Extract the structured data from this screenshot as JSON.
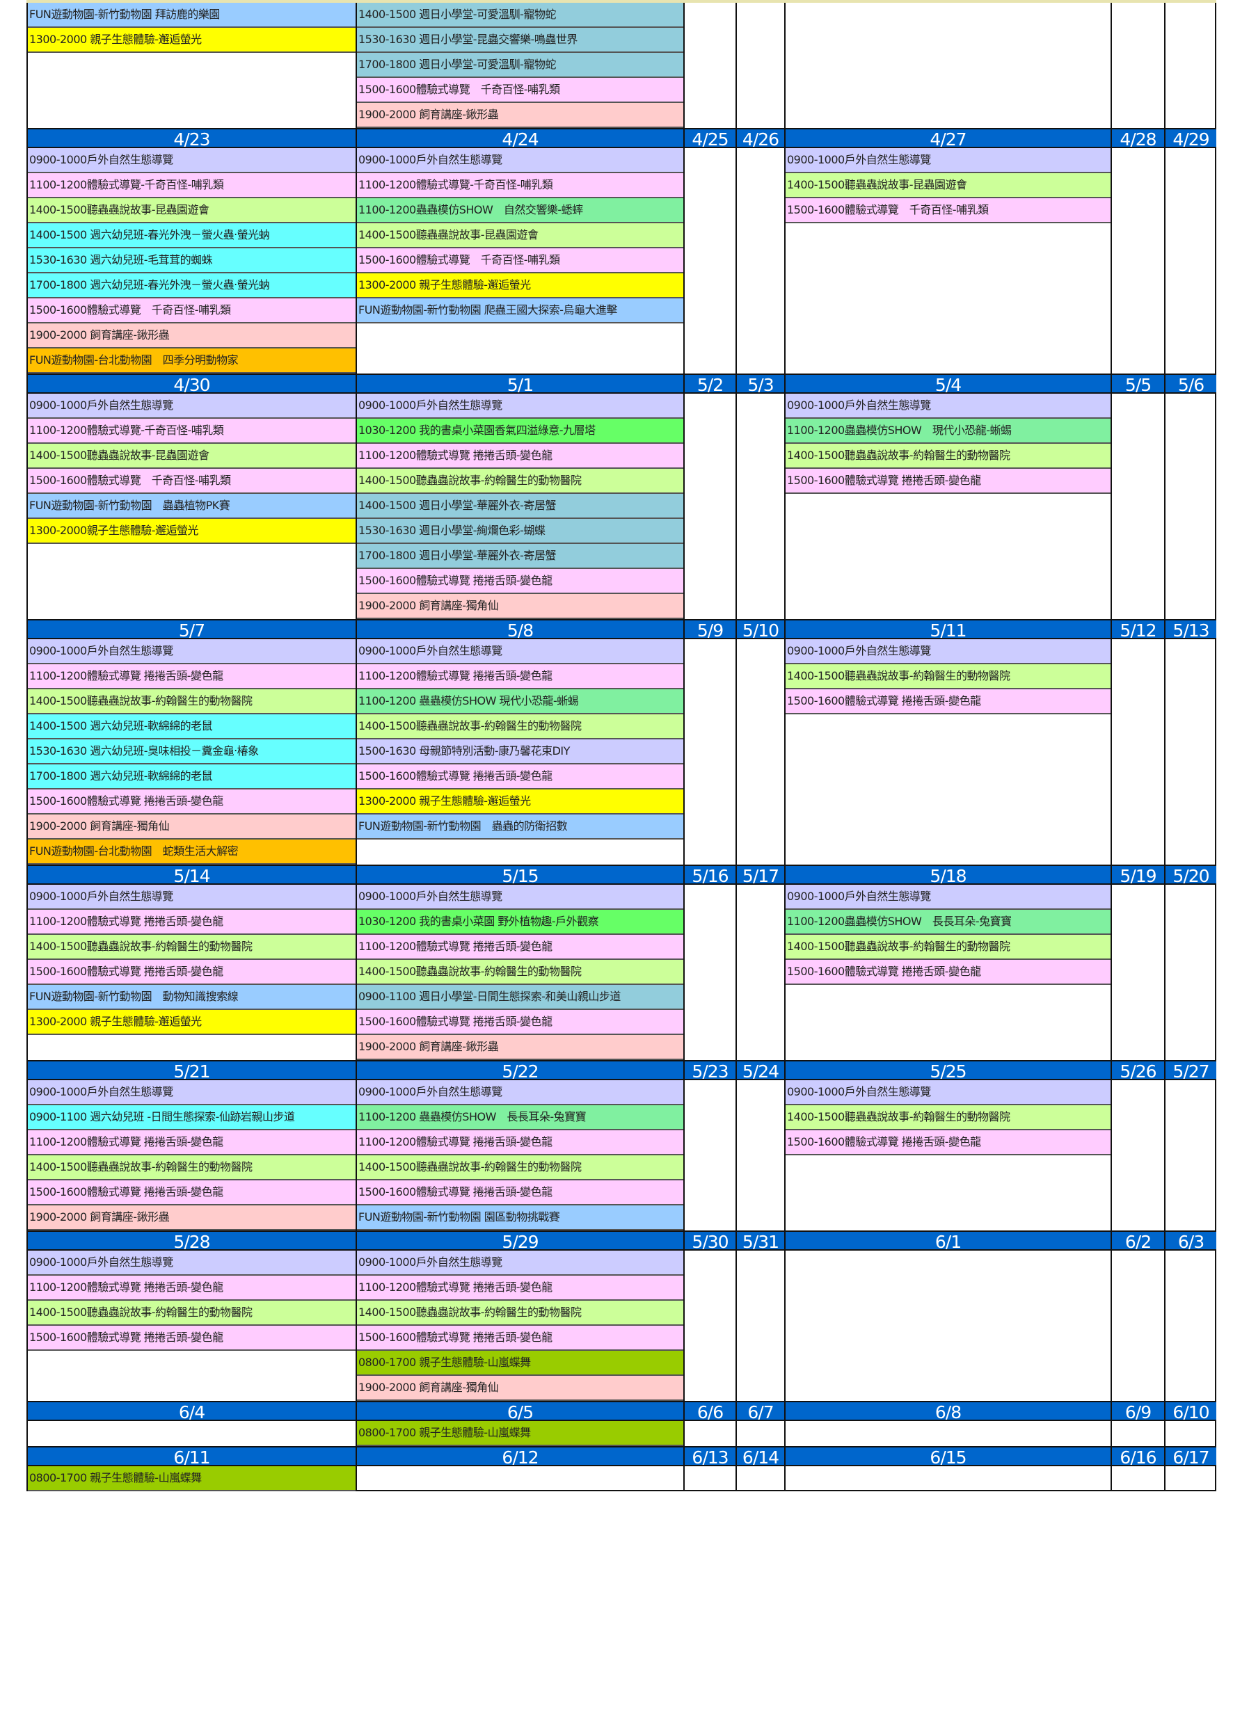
{
  "colors": {
    "header": "#0066cc",
    "tour": "#ccccff",
    "exp": "#ffccff",
    "story": "#ccff99",
    "kid": "#66ffff",
    "sun": "#92cddc",
    "fun": "#99ccff",
    "firefly": "#ffff00",
    "feed": "#ffcccc",
    "fun_tp": "#ffc000",
    "show": "#80f0a0",
    "garden": "#66ff66",
    "mom": "#ccccff",
    "butterfly": "#99cc00"
  },
  "weeks": [
    {
      "dates": [],
      "cols": [
        [
          {
            "t": "FUN遊動物園-新竹動物園  拜訪鹿的樂園",
            "c": "fun"
          },
          {
            "t": "1300-2000 親子生態體驗-邂逅螢光",
            "c": "firefly"
          }
        ],
        [
          {
            "t": "1400-1500 週日小學堂-可愛溫馴-寵物蛇",
            "c": "sun"
          },
          {
            "t": "1530-1630 週日小學堂-昆蟲交響樂-鳴蟲世界",
            "c": "sun"
          },
          {
            "t": "1700-1800 週日小學堂-可愛溫馴-寵物蛇",
            "c": "sun"
          },
          {
            "t": "1500-1600體驗式導覽　千奇百怪-哺乳類",
            "c": "exp"
          },
          {
            "t": "1900-2000 飼育講座-鍬形蟲",
            "c": "feed"
          }
        ],
        [],
        [],
        [],
        [],
        []
      ]
    },
    {
      "dates": [
        "4/23",
        "4/24",
        "4/25",
        "4/26",
        "4/27",
        "4/28",
        "4/29"
      ],
      "cols": [
        [
          {
            "t": "0900-1000戶外自然生態導覽",
            "c": "tour"
          },
          {
            "t": "1100-1200體驗式導覽-千奇百怪-哺乳類",
            "c": "exp"
          },
          {
            "t": "1400-1500聽蟲蟲說故事-昆蟲園遊會",
            "c": "story"
          },
          {
            "t": "1400-1500 週六幼兒班-春光外洩－螢火蟲‧螢光蚋",
            "c": "kid"
          },
          {
            "t": "1530-1630 週六幼兒班-毛茸茸的蜘蛛",
            "c": "kid"
          },
          {
            "t": "1700-1800 週六幼兒班-春光外洩－螢火蟲‧螢光蚋",
            "c": "kid"
          },
          {
            "t": "1500-1600體驗式導覽　千奇百怪-哺乳類",
            "c": "exp"
          },
          {
            "t": "1900-2000 飼育講座-鍬形蟲",
            "c": "feed"
          },
          {
            "t": "FUN遊動物園-台北動物園　四季分明動物家",
            "c": "fun_tp"
          }
        ],
        [
          {
            "t": "0900-1000戶外自然生態導覽",
            "c": "tour"
          },
          {
            "t": "1100-1200體驗式導覽-千奇百怪-哺乳類",
            "c": "exp"
          },
          {
            "t": "1100-1200蟲蟲模仿SHOW　自然交響樂-蟋蟀",
            "c": "show"
          },
          {
            "t": "1400-1500聽蟲蟲說故事-昆蟲園遊會",
            "c": "story"
          },
          {
            "t": "1500-1600體驗式導覽　千奇百怪-哺乳類",
            "c": "exp"
          },
          {
            "t": "1300-2000 親子生態體驗-邂逅螢光",
            "c": "firefly"
          },
          {
            "t": "FUN遊動物園-新竹動物園 爬蟲王國大探索-烏龜大進擊",
            "c": "fun"
          }
        ],
        [],
        [],
        [
          {
            "t": "0900-1000戶外自然生態導覽",
            "c": "tour"
          },
          {
            "t": "1400-1500聽蟲蟲說故事-昆蟲園遊會",
            "c": "story"
          },
          {
            "t": "1500-1600體驗式導覽　千奇百怪-哺乳類",
            "c": "exp"
          }
        ],
        [],
        []
      ]
    },
    {
      "dates": [
        "4/30",
        "5/1",
        "5/2",
        "5/3",
        "5/4",
        "5/5",
        "5/6"
      ],
      "cols": [
        [
          {
            "t": "0900-1000戶外自然生態導覽",
            "c": "tour"
          },
          {
            "t": "1100-1200體驗式導覽-千奇百怪-哺乳類",
            "c": "exp"
          },
          {
            "t": "1400-1500聽蟲蟲說故事-昆蟲園遊會",
            "c": "story"
          },
          {
            "t": "1500-1600體驗式導覽　千奇百怪-哺乳類",
            "c": "exp"
          },
          {
            "t": "FUN遊動物園-新竹動物園　蟲蟲植物PK賽",
            "c": "fun"
          },
          {
            "t": "1300-2000親子生態體驗-邂逅螢光",
            "c": "firefly"
          }
        ],
        [
          {
            "t": "0900-1000戶外自然生態導覽",
            "c": "tour"
          },
          {
            "t": "1030-1200 我的書桌小菜園香氣四溢綠意-九層塔",
            "c": "garden"
          },
          {
            "t": "1100-1200體驗式導覽 捲捲舌頭-變色龍",
            "c": "exp"
          },
          {
            "t": "1400-1500聽蟲蟲說故事-約翰醫生的動物醫院",
            "c": "story"
          },
          {
            "t": "1400-1500 週日小學堂-華麗外衣-寄居蟹",
            "c": "sun"
          },
          {
            "t": "1530-1630 週日小學堂-絢爛色彩-蝴蝶",
            "c": "sun"
          },
          {
            "t": "1700-1800 週日小學堂-華麗外衣-寄居蟹",
            "c": "sun"
          },
          {
            "t": "1500-1600體驗式導覽 捲捲舌頭-變色龍",
            "c": "exp"
          },
          {
            "t": "1900-2000 飼育講座-獨角仙",
            "c": "feed"
          }
        ],
        [],
        [],
        [
          {
            "t": "0900-1000戶外自然生態導覽",
            "c": "tour"
          },
          {
            "t": "1100-1200蟲蟲模仿SHOW　現代小恐龍-蜥蜴",
            "c": "show"
          },
          {
            "t": "1400-1500聽蟲蟲說故事-約翰醫生的動物醫院",
            "c": "story"
          },
          {
            "t": "1500-1600體驗式導覽 捲捲舌頭-變色龍",
            "c": "exp"
          }
        ],
        [],
        []
      ]
    },
    {
      "dates": [
        "5/7",
        "5/8",
        "5/9",
        "5/10",
        "5/11",
        "5/12",
        "5/13"
      ],
      "cols": [
        [
          {
            "t": "0900-1000戶外自然生態導覽",
            "c": "tour"
          },
          {
            "t": "1100-1200體驗式導覽 捲捲舌頭-變色龍",
            "c": "exp"
          },
          {
            "t": "1400-1500聽蟲蟲說故事-約翰醫生的動物醫院",
            "c": "story"
          },
          {
            "t": "1400-1500 週六幼兒班-軟綿綿的老鼠",
            "c": "kid"
          },
          {
            "t": "1530-1630 週六幼兒班-臭味相投－糞金龜‧椿象",
            "c": "kid"
          },
          {
            "t": "1700-1800 週六幼兒班-軟綿綿的老鼠",
            "c": "kid"
          },
          {
            "t": "1500-1600體驗式導覽 捲捲舌頭-變色龍",
            "c": "exp"
          },
          {
            "t": "1900-2000 飼育講座-獨角仙",
            "c": "feed"
          },
          {
            "t": "FUN遊動物園-台北動物園　蛇類生活大解密",
            "c": "fun_tp"
          }
        ],
        [
          {
            "t": "0900-1000戶外自然生態導覽",
            "c": "tour"
          },
          {
            "t": "1100-1200體驗式導覽 捲捲舌頭-變色龍",
            "c": "exp"
          },
          {
            "t": "1100-1200 蟲蟲模仿SHOW 現代小恐龍-蜥蜴",
            "c": "show"
          },
          {
            "t": "1400-1500聽蟲蟲說故事-約翰醫生的動物醫院",
            "c": "story"
          },
          {
            "t": "1500-1630 母親節特別活動-康乃馨花束DIY",
            "c": "mom"
          },
          {
            "t": "1500-1600體驗式導覽 捲捲舌頭-變色龍",
            "c": "exp"
          },
          {
            "t": "1300-2000 親子生態體驗-邂逅螢光",
            "c": "firefly"
          },
          {
            "t": "FUN遊動物園-新竹動物園　蟲蟲的防衛招數",
            "c": "fun"
          }
        ],
        [],
        [],
        [
          {
            "t": "0900-1000戶外自然生態導覽",
            "c": "tour"
          },
          {
            "t": "1400-1500聽蟲蟲說故事-約翰醫生的動物醫院",
            "c": "story"
          },
          {
            "t": "1500-1600體驗式導覽 捲捲舌頭-變色龍",
            "c": "exp"
          }
        ],
        [],
        []
      ]
    },
    {
      "dates": [
        "5/14",
        "5/15",
        "5/16",
        "5/17",
        "5/18",
        "5/19",
        "5/20"
      ],
      "cols": [
        [
          {
            "t": "0900-1000戶外自然生態導覽",
            "c": "tour"
          },
          {
            "t": "1100-1200體驗式導覽 捲捲舌頭-變色龍",
            "c": "exp"
          },
          {
            "t": "1400-1500聽蟲蟲說故事-約翰醫生的動物醫院",
            "c": "story"
          },
          {
            "t": "1500-1600體驗式導覽 捲捲舌頭-變色龍",
            "c": "exp"
          },
          {
            "t": "FUN遊動物園-新竹動物園　動物知識搜索線",
            "c": "fun"
          },
          {
            "t": "1300-2000 親子生態體驗-邂逅螢光",
            "c": "firefly"
          }
        ],
        [
          {
            "t": "0900-1000戶外自然生態導覽",
            "c": "tour"
          },
          {
            "t": "1030-1200 我的書桌小菜園 野外植物趣-戶外觀察",
            "c": "garden"
          },
          {
            "t": "1100-1200體驗式導覽 捲捲舌頭-變色龍",
            "c": "exp"
          },
          {
            "t": "1400-1500聽蟲蟲說故事-約翰醫生的動物醫院",
            "c": "story"
          },
          {
            "t": "0900-1100 週日小學堂-日間生態探索-和美山親山步道",
            "c": "sun"
          },
          {
            "t": "1500-1600體驗式導覽 捲捲舌頭-變色龍",
            "c": "exp"
          },
          {
            "t": "1900-2000 飼育講座-鍬形蟲",
            "c": "feed"
          }
        ],
        [],
        [],
        [
          {
            "t": "0900-1000戶外自然生態導覽",
            "c": "tour"
          },
          {
            "t": "1100-1200蟲蟲模仿SHOW　長長耳朵-兔寶寶",
            "c": "show"
          },
          {
            "t": "1400-1500聽蟲蟲說故事-約翰醫生的動物醫院",
            "c": "story"
          },
          {
            "t": "1500-1600體驗式導覽 捲捲舌頭-變色龍",
            "c": "exp"
          }
        ],
        [],
        []
      ]
    },
    {
      "dates": [
        "5/21",
        "5/22",
        "5/23",
        "5/24",
        "5/25",
        "5/26",
        "5/27"
      ],
      "cols": [
        [
          {
            "t": "0900-1000戶外自然生態導覽",
            "c": "tour"
          },
          {
            "t": "0900-1100 週六幼兒班 -日間生態探索-仙跡岩親山步道",
            "c": "kid"
          },
          {
            "t": "1100-1200體驗式導覽 捲捲舌頭-變色龍",
            "c": "exp"
          },
          {
            "t": "1400-1500聽蟲蟲說故事-約翰醫生的動物醫院",
            "c": "story"
          },
          {
            "t": "1500-1600體驗式導覽 捲捲舌頭-變色龍",
            "c": "exp"
          },
          {
            "t": "1900-2000 飼育講座-鍬形蟲",
            "c": "feed"
          }
        ],
        [
          {
            "t": "0900-1000戶外自然生態導覽",
            "c": "tour"
          },
          {
            "t": "1100-1200 蟲蟲模仿SHOW　長長耳朵-兔寶寶",
            "c": "show"
          },
          {
            "t": "1100-1200體驗式導覽 捲捲舌頭-變色龍",
            "c": "exp"
          },
          {
            "t": "1400-1500聽蟲蟲說故事-約翰醫生的動物醫院",
            "c": "story"
          },
          {
            "t": "1500-1600體驗式導覽 捲捲舌頭-變色龍",
            "c": "exp"
          },
          {
            "t": "FUN遊動物園-新竹動物園 園區動物挑戰賽",
            "c": "fun"
          }
        ],
        [],
        [],
        [
          {
            "t": "0900-1000戶外自然生態導覽",
            "c": "tour"
          },
          {
            "t": "1400-1500聽蟲蟲說故事-約翰醫生的動物醫院",
            "c": "story"
          },
          {
            "t": "1500-1600體驗式導覽 捲捲舌頭-變色龍",
            "c": "exp"
          }
        ],
        [],
        []
      ]
    },
    {
      "dates": [
        "5/28",
        "5/29",
        "5/30",
        "5/31",
        "6/1",
        "6/2",
        "6/3"
      ],
      "cols": [
        [
          {
            "t": "0900-1000戶外自然生態導覽",
            "c": "tour"
          },
          {
            "t": "1100-1200體驗式導覽 捲捲舌頭-變色龍",
            "c": "exp"
          },
          {
            "t": "1400-1500聽蟲蟲說故事-約翰醫生的動物醫院",
            "c": "story"
          },
          {
            "t": "1500-1600體驗式導覽 捲捲舌頭-變色龍",
            "c": "exp"
          }
        ],
        [
          {
            "t": "0900-1000戶外自然生態導覽",
            "c": "tour"
          },
          {
            "t": "1100-1200體驗式導覽 捲捲舌頭-變色龍",
            "c": "exp"
          },
          {
            "t": "1400-1500聽蟲蟲說故事-約翰醫生的動物醫院",
            "c": "story"
          },
          {
            "t": "1500-1600體驗式導覽 捲捲舌頭-變色龍",
            "c": "exp"
          },
          {
            "t": "0800-1700 親子生態體驗-山嵐蝶舞",
            "c": "butterfly"
          },
          {
            "t": "1900-2000 飼育講座-獨角仙",
            "c": "feed"
          }
        ],
        [],
        [],
        [],
        [],
        []
      ]
    },
    {
      "dates": [
        "6/4",
        "6/5",
        "6/6",
        "6/7",
        "6/8",
        "6/9",
        "6/10"
      ],
      "cols": [
        [],
        [
          {
            "t": "0800-1700 親子生態體驗-山嵐蝶舞",
            "c": "butterfly"
          }
        ],
        [],
        [],
        [],
        [],
        []
      ]
    },
    {
      "dates": [
        "6/11",
        "6/12",
        "6/13",
        "6/14",
        "6/15",
        "6/16",
        "6/17"
      ],
      "cols": [
        [
          {
            "t": "0800-1700 親子生態體驗-山嵐蝶舞",
            "c": "butterfly"
          }
        ],
        [],
        [],
        [],
        [],
        [],
        []
      ]
    }
  ]
}
